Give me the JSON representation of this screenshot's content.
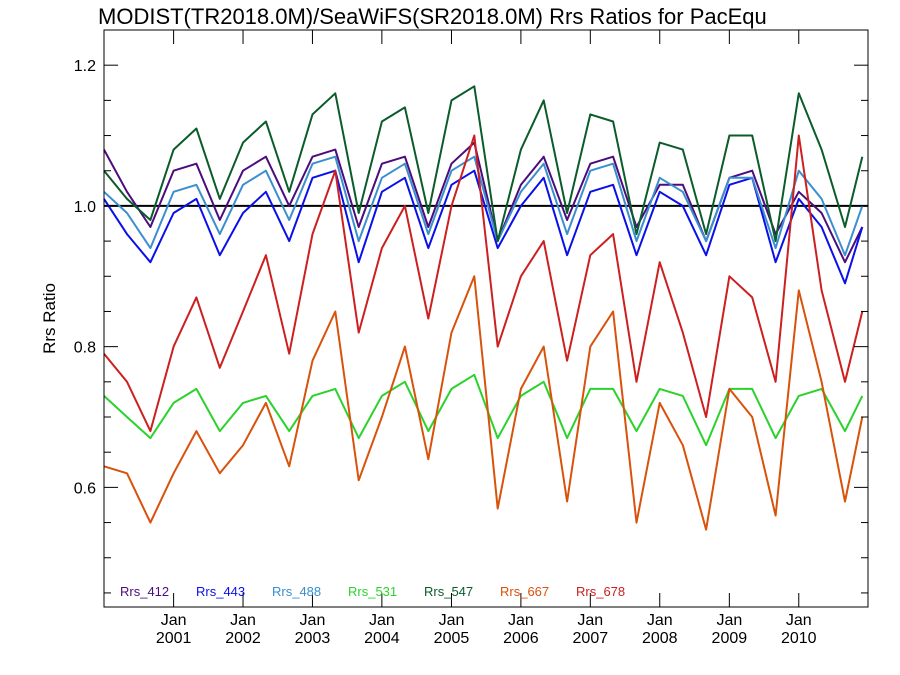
{
  "chart_data": {
    "type": "line",
    "title": "MODIST(TR2018.0M)/SeaWiFS(SR2018.0M)  Rrs Ratios for PacEqu",
    "ylabel": "Rrs Ratio",
    "xlabel": "",
    "ylim": [
      0.43,
      1.25
    ],
    "xlim": [
      "2000-01-01",
      "2010-12-31"
    ],
    "yticks": [
      0.6,
      0.8,
      1.0,
      1.2
    ],
    "ytick_labels": [
      "0.6",
      "0.8",
      "1.0",
      "1.2"
    ],
    "xticks": [
      "2001-01-01",
      "2002-01-01",
      "2003-01-01",
      "2004-01-01",
      "2005-01-01",
      "2006-01-01",
      "2007-01-01",
      "2008-01-01",
      "2009-01-01",
      "2010-01-01"
    ],
    "xtick_labels_month": [
      "Jan",
      "Jan",
      "Jan",
      "Jan",
      "Jan",
      "Jan",
      "Jan",
      "Jan",
      "Jan",
      "Jan"
    ],
    "xtick_labels_year": [
      "2001",
      "2002",
      "2003",
      "2004",
      "2005",
      "2006",
      "2007",
      "2008",
      "2009",
      "2010"
    ],
    "reference_line": 1.0,
    "legend_position": "bottom-left",
    "series": [
      {
        "name": "Rrs_412",
        "color": "#4b0c7e",
        "x": [
          "2000-01",
          "2000-05",
          "2000-09",
          "2001-01",
          "2001-05",
          "2001-09",
          "2002-01",
          "2002-05",
          "2002-09",
          "2003-01",
          "2003-05",
          "2003-09",
          "2004-01",
          "2004-05",
          "2004-09",
          "2005-01",
          "2005-05",
          "2005-09",
          "2006-01",
          "2006-05",
          "2006-09",
          "2007-01",
          "2007-05",
          "2007-09",
          "2008-01",
          "2008-05",
          "2008-09",
          "2009-01",
          "2009-05",
          "2009-09",
          "2010-01",
          "2010-05",
          "2010-09",
          "2010-12"
        ],
        "values": [
          1.08,
          1.02,
          0.97,
          1.05,
          1.06,
          0.98,
          1.05,
          1.07,
          1.0,
          1.07,
          1.08,
          0.97,
          1.06,
          1.07,
          0.97,
          1.06,
          1.09,
          0.95,
          1.03,
          1.07,
          0.98,
          1.06,
          1.07,
          0.97,
          1.03,
          1.03,
          0.95,
          1.04,
          1.05,
          0.96,
          1.02,
          0.99,
          0.92,
          0.97
        ]
      },
      {
        "name": "Rrs_443",
        "color": "#0a10e8",
        "x": [
          "2000-01",
          "2000-05",
          "2000-09",
          "2001-01",
          "2001-05",
          "2001-09",
          "2002-01",
          "2002-05",
          "2002-09",
          "2003-01",
          "2003-05",
          "2003-09",
          "2004-01",
          "2004-05",
          "2004-09",
          "2005-01",
          "2005-05",
          "2005-09",
          "2006-01",
          "2006-05",
          "2006-09",
          "2007-01",
          "2007-05",
          "2007-09",
          "2008-01",
          "2008-05",
          "2008-09",
          "2009-01",
          "2009-05",
          "2009-09",
          "2010-01",
          "2010-05",
          "2010-09",
          "2010-12"
        ],
        "values": [
          1.01,
          0.96,
          0.92,
          0.99,
          1.01,
          0.93,
          0.99,
          1.02,
          0.95,
          1.04,
          1.05,
          0.92,
          1.02,
          1.04,
          0.94,
          1.03,
          1.05,
          0.94,
          1.0,
          1.04,
          0.93,
          1.02,
          1.03,
          0.93,
          1.02,
          1.0,
          0.93,
          1.03,
          1.04,
          0.92,
          1.01,
          0.97,
          0.89,
          0.97
        ]
      },
      {
        "name": "Rrs_488",
        "color": "#3b8fcf",
        "x": [
          "2000-01",
          "2000-05",
          "2000-09",
          "2001-01",
          "2001-05",
          "2001-09",
          "2002-01",
          "2002-05",
          "2002-09",
          "2003-01",
          "2003-05",
          "2003-09",
          "2004-01",
          "2004-05",
          "2004-09",
          "2005-01",
          "2005-05",
          "2005-09",
          "2006-01",
          "2006-05",
          "2006-09",
          "2007-01",
          "2007-05",
          "2007-09",
          "2008-01",
          "2008-05",
          "2008-09",
          "2009-01",
          "2009-05",
          "2009-09",
          "2010-01",
          "2010-05",
          "2010-09",
          "2010-12"
        ],
        "values": [
          1.02,
          0.99,
          0.94,
          1.02,
          1.03,
          0.96,
          1.03,
          1.05,
          0.98,
          1.06,
          1.07,
          0.95,
          1.04,
          1.06,
          0.96,
          1.05,
          1.07,
          0.95,
          1.02,
          1.06,
          0.96,
          1.05,
          1.06,
          0.95,
          1.04,
          1.02,
          0.95,
          1.04,
          1.04,
          0.94,
          1.05,
          1.01,
          0.93,
          1.0
        ]
      },
      {
        "name": "Rrs_531",
        "color": "#2cd22c",
        "x": [
          "2000-01",
          "2000-05",
          "2000-09",
          "2001-01",
          "2001-05",
          "2001-09",
          "2002-01",
          "2002-05",
          "2002-09",
          "2003-01",
          "2003-05",
          "2003-09",
          "2004-01",
          "2004-05",
          "2004-09",
          "2005-01",
          "2005-05",
          "2005-09",
          "2006-01",
          "2006-05",
          "2006-09",
          "2007-01",
          "2007-05",
          "2007-09",
          "2008-01",
          "2008-05",
          "2008-09",
          "2009-01",
          "2009-05",
          "2009-09",
          "2010-01",
          "2010-05",
          "2010-09",
          "2010-12"
        ],
        "values": [
          0.73,
          0.7,
          0.67,
          0.72,
          0.74,
          0.68,
          0.72,
          0.73,
          0.68,
          0.73,
          0.74,
          0.67,
          0.73,
          0.75,
          0.68,
          0.74,
          0.76,
          0.67,
          0.73,
          0.75,
          0.67,
          0.74,
          0.74,
          0.68,
          0.74,
          0.73,
          0.66,
          0.74,
          0.74,
          0.67,
          0.73,
          0.74,
          0.68,
          0.73
        ]
      },
      {
        "name": "Rrs_547",
        "color": "#0b5c2b",
        "x": [
          "2000-01",
          "2000-05",
          "2000-09",
          "2001-01",
          "2001-05",
          "2001-09",
          "2002-01",
          "2002-05",
          "2002-09",
          "2003-01",
          "2003-05",
          "2003-09",
          "2004-01",
          "2004-05",
          "2004-09",
          "2005-01",
          "2005-05",
          "2005-09",
          "2006-01",
          "2006-05",
          "2006-09",
          "2007-01",
          "2007-05",
          "2007-09",
          "2008-01",
          "2008-05",
          "2008-09",
          "2009-01",
          "2009-05",
          "2009-09",
          "2010-01",
          "2010-05",
          "2010-09",
          "2010-12"
        ],
        "values": [
          1.05,
          1.01,
          0.98,
          1.08,
          1.11,
          1.01,
          1.09,
          1.12,
          1.02,
          1.13,
          1.16,
          0.99,
          1.12,
          1.14,
          0.99,
          1.15,
          1.17,
          0.95,
          1.08,
          1.15,
          0.99,
          1.13,
          1.12,
          0.96,
          1.09,
          1.08,
          0.96,
          1.1,
          1.1,
          0.95,
          1.16,
          1.08,
          0.97,
          1.07
        ]
      },
      {
        "name": "Rrs_667",
        "color": "#d9520b",
        "x": [
          "2000-01",
          "2000-05",
          "2000-09",
          "2001-01",
          "2001-05",
          "2001-09",
          "2002-01",
          "2002-05",
          "2002-09",
          "2003-01",
          "2003-05",
          "2003-09",
          "2004-01",
          "2004-05",
          "2004-09",
          "2005-01",
          "2005-05",
          "2005-09",
          "2006-01",
          "2006-05",
          "2006-09",
          "2007-01",
          "2007-05",
          "2007-09",
          "2008-01",
          "2008-05",
          "2008-09",
          "2009-01",
          "2009-05",
          "2009-09",
          "2010-01",
          "2010-05",
          "2010-09",
          "2010-12"
        ],
        "values": [
          0.63,
          0.62,
          0.55,
          0.62,
          0.68,
          0.62,
          0.66,
          0.72,
          0.63,
          0.78,
          0.85,
          0.61,
          0.7,
          0.8,
          0.64,
          0.82,
          0.9,
          0.57,
          0.74,
          0.8,
          0.58,
          0.8,
          0.85,
          0.55,
          0.72,
          0.66,
          0.54,
          0.74,
          0.7,
          0.56,
          0.88,
          0.75,
          0.58,
          0.7
        ]
      },
      {
        "name": "Rrs_678",
        "color": "#cc2020",
        "x": [
          "2000-01",
          "2000-05",
          "2000-09",
          "2001-01",
          "2001-05",
          "2001-09",
          "2002-01",
          "2002-05",
          "2002-09",
          "2003-01",
          "2003-05",
          "2003-09",
          "2004-01",
          "2004-05",
          "2004-09",
          "2005-01",
          "2005-05",
          "2005-09",
          "2006-01",
          "2006-05",
          "2006-09",
          "2007-01",
          "2007-05",
          "2007-09",
          "2008-01",
          "2008-05",
          "2008-09",
          "2009-01",
          "2009-05",
          "2009-09",
          "2010-01",
          "2010-05",
          "2010-09",
          "2010-12"
        ],
        "values": [
          0.79,
          0.75,
          0.68,
          0.8,
          0.87,
          0.77,
          0.85,
          0.93,
          0.79,
          0.96,
          1.05,
          0.82,
          0.94,
          1.0,
          0.84,
          1.0,
          1.1,
          0.8,
          0.9,
          0.95,
          0.78,
          0.93,
          0.96,
          0.75,
          0.92,
          0.82,
          0.7,
          0.9,
          0.87,
          0.75,
          1.1,
          0.88,
          0.75,
          0.85
        ]
      }
    ]
  }
}
